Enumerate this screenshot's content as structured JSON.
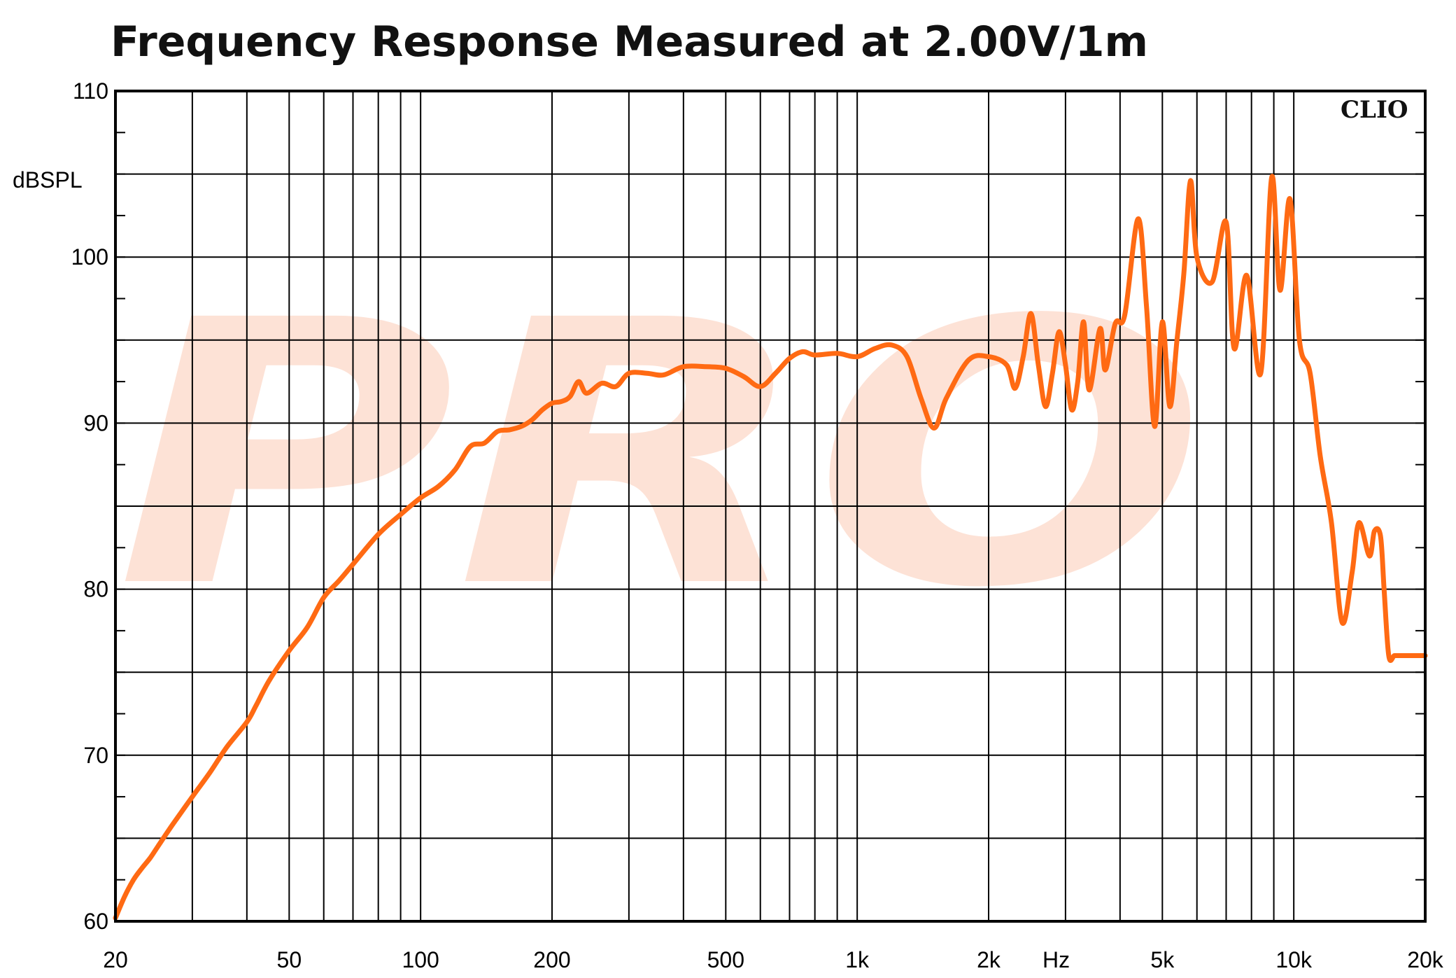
{
  "chart_data": {
    "type": "line",
    "title": "Frequency Response Measured at 2.00V/1m",
    "xlabel": "Hz",
    "ylabel": "dBSPL",
    "brand": "CLIO",
    "watermark": "PRO",
    "x_scale": "log",
    "xlim": [
      20,
      20000
    ],
    "ylim": [
      60,
      110
    ],
    "y_major_ticks": [
      60,
      70,
      80,
      90,
      100,
      110
    ],
    "y_minor_ticks": [
      65,
      75,
      85,
      95,
      105
    ],
    "x_gridlines": [
      20,
      30,
      40,
      50,
      60,
      70,
      80,
      90,
      100,
      200,
      300,
      400,
      500,
      600,
      700,
      800,
      900,
      1000,
      2000,
      3000,
      4000,
      5000,
      6000,
      7000,
      8000,
      9000,
      10000,
      20000
    ],
    "x_tick_labels": [
      {
        "value": 20,
        "label": "20"
      },
      {
        "value": 50,
        "label": "50"
      },
      {
        "value": 100,
        "label": "100"
      },
      {
        "value": 200,
        "label": "200"
      },
      {
        "value": 500,
        "label": "500"
      },
      {
        "value": 1000,
        "label": "1k"
      },
      {
        "value": 2000,
        "label": "2k"
      },
      {
        "value": 5000,
        "label": "5k"
      },
      {
        "value": 10000,
        "label": "10k"
      },
      {
        "value": 20000,
        "label": "20k"
      }
    ],
    "grid": true,
    "line_color": "#ff6a13",
    "series": [
      {
        "x": [
          20,
          21,
          22,
          23,
          24,
          25,
          27,
          30,
          33,
          36,
          40,
          42,
          45,
          50,
          55,
          60,
          65,
          70,
          80,
          90,
          100,
          110,
          120,
          130,
          140,
          150,
          160,
          170,
          180,
          190,
          200,
          210,
          220,
          230,
          240,
          260,
          280,
          300,
          330,
          360,
          400,
          450,
          500,
          550,
          600,
          650,
          700,
          750,
          800,
          900,
          1000,
          1100,
          1200,
          1300,
          1400,
          1500,
          1600,
          1800,
          2000,
          2200,
          2300,
          2400,
          2500,
          2600,
          2700,
          2800,
          2900,
          3000,
          3100,
          3200,
          3300,
          3400,
          3600,
          3700,
          3900,
          4100,
          4400,
          4600,
          4800,
          5000,
          5200,
          5400,
          5600,
          5800,
          6000,
          6500,
          7000,
          7300,
          7800,
          8400,
          8900,
          9300,
          9800,
          10300,
          10900,
          11500,
          12200,
          12900,
          13600,
          14100,
          14900,
          15300,
          15800,
          16100,
          16500,
          17000,
          17500,
          18000,
          18500,
          19000,
          19500,
          20000
        ],
        "y": [
          60.2,
          61.5,
          62.5,
          63.2,
          63.8,
          64.5,
          65.8,
          67.5,
          69,
          70.5,
          72,
          73,
          74.5,
          76.3,
          77.7,
          79.5,
          80.5,
          81.5,
          83.3,
          84.5,
          85.5,
          86.2,
          87.2,
          88.6,
          88.8,
          89.5,
          89.6,
          89.8,
          90.2,
          90.8,
          91.2,
          91.3,
          91.6,
          92.5,
          91.8,
          92.4,
          92.2,
          93,
          93,
          92.9,
          93.4,
          93.4,
          93.3,
          92.8,
          92.2,
          93,
          93.9,
          94.3,
          94.1,
          94.2,
          94,
          94.5,
          94.7,
          94,
          91.5,
          89.7,
          91.5,
          93.8,
          94.0,
          93.5,
          92.1,
          94.0,
          96.6,
          93.5,
          91.0,
          93.0,
          95.5,
          93.5,
          90.8,
          92.5,
          96.1,
          92.0,
          95.7,
          93.2,
          96.0,
          96.5,
          102.3,
          97.0,
          89.8,
          96.1,
          91.0,
          95.0,
          99.0,
          104.6,
          100.0,
          98.5,
          102.1,
          94.5,
          98.9,
          93.0,
          104.8,
          98.0,
          103.5,
          95.0,
          93.0,
          88.0,
          84.0,
          78.0,
          81.0,
          84.0,
          82.0,
          83.5,
          83.2,
          80.0,
          76.0,
          76.0,
          76.0,
          76.0,
          76.0,
          76.0,
          76.0,
          76.0
        ]
      }
    ]
  }
}
